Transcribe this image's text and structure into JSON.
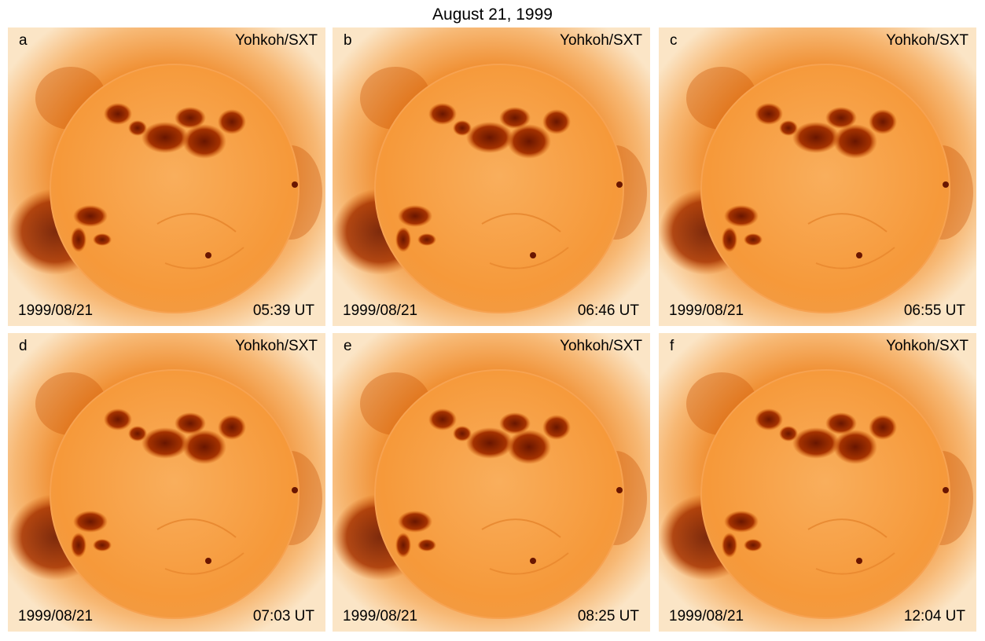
{
  "figure": {
    "title": "August 21, 1999"
  },
  "colors": {
    "disk": "#f6993a",
    "corona_dark": "#c94f00",
    "active_region": "#6a1600",
    "background_glow": "#fbe5c6"
  },
  "panels": [
    {
      "letter": "a",
      "instrument": "Yohkoh/SXT",
      "date": "1999/08/21",
      "time": "05:39 UT"
    },
    {
      "letter": "b",
      "instrument": "Yohkoh/SXT",
      "date": "1999/08/21",
      "time": "06:46 UT"
    },
    {
      "letter": "c",
      "instrument": "Yohkoh/SXT",
      "date": "1999/08/21",
      "time": "06:55 UT"
    },
    {
      "letter": "d",
      "instrument": "Yohkoh/SXT",
      "date": "1999/08/21",
      "time": "07:03 UT"
    },
    {
      "letter": "e",
      "instrument": "Yohkoh/SXT",
      "date": "1999/08/21",
      "time": "08:25 UT"
    },
    {
      "letter": "f",
      "instrument": "Yohkoh/SXT",
      "date": "1999/08/21",
      "time": "12:04 UT"
    }
  ]
}
